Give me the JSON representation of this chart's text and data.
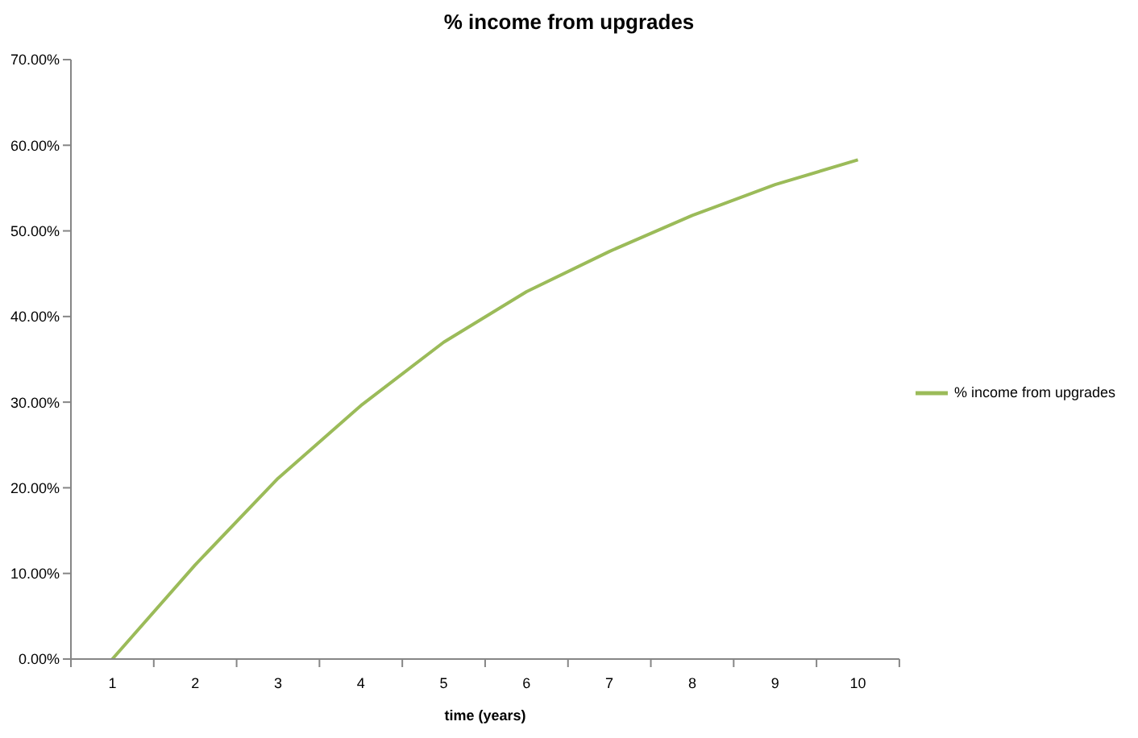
{
  "chart_data": {
    "type": "line",
    "title": "% income from upgrades",
    "xlabel": "time (years)",
    "categories": [
      "1",
      "2",
      "3",
      "4",
      "5",
      "6",
      "7",
      "8",
      "9",
      "10"
    ],
    "series": [
      {
        "name": "% income from upgrades",
        "color": "#9bbb59",
        "values": [
          0,
          11,
          21.1,
          29.6,
          37,
          42.9,
          47.6,
          51.8,
          55.4,
          58.3
        ]
      }
    ],
    "ylim": [
      0,
      70
    ],
    "yticks": [
      {
        "value": 0,
        "label": "0.00%"
      },
      {
        "value": 10,
        "label": "10.00%"
      },
      {
        "value": 20,
        "label": "20.00%"
      },
      {
        "value": 30,
        "label": "30.00%"
      },
      {
        "value": 40,
        "label": "40.00%"
      },
      {
        "value": 50,
        "label": "50.00%"
      },
      {
        "value": 60,
        "label": "60.00%"
      },
      {
        "value": 70,
        "label": "70.00%"
      }
    ],
    "grid": false,
    "legend": "right",
    "marker": "none",
    "line_style": "solid"
  }
}
